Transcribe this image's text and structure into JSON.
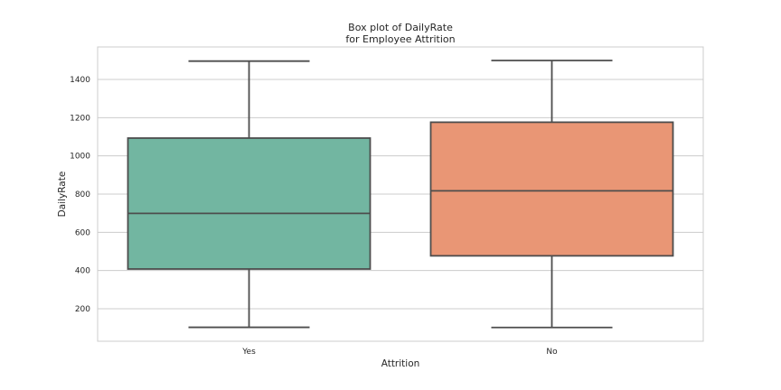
{
  "chart_data": {
    "type": "box",
    "title": [
      "Box plot of DailyRate",
      "for Employee Attrition"
    ],
    "xlabel": "Attrition",
    "ylabel": "DailyRate",
    "categories": [
      "Yes",
      "No"
    ],
    "series": [
      {
        "category": "Yes",
        "color": "#72b6a1",
        "whisker_low": 103,
        "q1": 408,
        "median": 699,
        "q3": 1093,
        "whisker_high": 1496
      },
      {
        "category": "No",
        "color": "#e99675",
        "whisker_low": 102,
        "q1": 477,
        "median": 817,
        "q3": 1176,
        "whisker_high": 1499
      }
    ],
    "yticks": [
      200,
      400,
      600,
      800,
      1000,
      1200,
      1400
    ],
    "ylim": [
      30,
      1570
    ],
    "grid": true,
    "style": {
      "background": "#ffffff",
      "grid_color": "#cccccc",
      "spine_color": "#cccccc",
      "line_color": "#4d4d4d",
      "text_color": "#262626"
    }
  }
}
